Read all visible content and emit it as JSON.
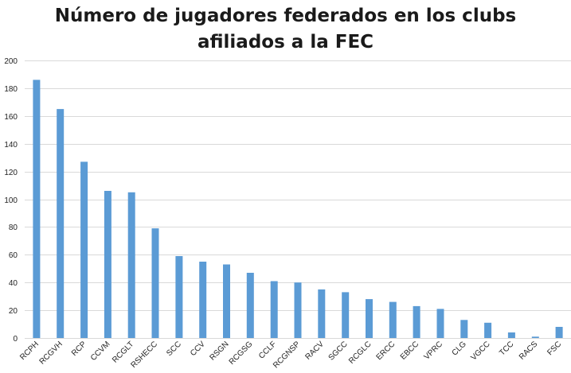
{
  "chart_data": {
    "type": "bar",
    "title_lines": [
      "Número de jugadores federados en los clubs",
      "afiliados a la FEC"
    ],
    "categories": [
      "RCPH",
      "RCGVH",
      "RCP",
      "CCVM",
      "RCGLT",
      "RSHECC",
      "SCC",
      "CCV",
      "RSGN",
      "RCGSG",
      "CCLF",
      "RCGNSP",
      "RACV",
      "SGCC",
      "RCGLC",
      "ERCC",
      "EBCC",
      "VPRC",
      "CLG",
      "VGCC",
      "TCC",
      "RACS",
      "FSC"
    ],
    "values": [
      186,
      165,
      127,
      106,
      105,
      79,
      59,
      55,
      53,
      47,
      41,
      40,
      35,
      33,
      28,
      26,
      23,
      21,
      13,
      11,
      4,
      1,
      8
    ],
    "ylim": [
      0,
      200
    ],
    "yticks": [
      0,
      20,
      40,
      60,
      80,
      100,
      120,
      140,
      160,
      180,
      200
    ],
    "bar_color": "#5b9bd5",
    "grid_color": "#d9d9d9",
    "grid": true
  }
}
